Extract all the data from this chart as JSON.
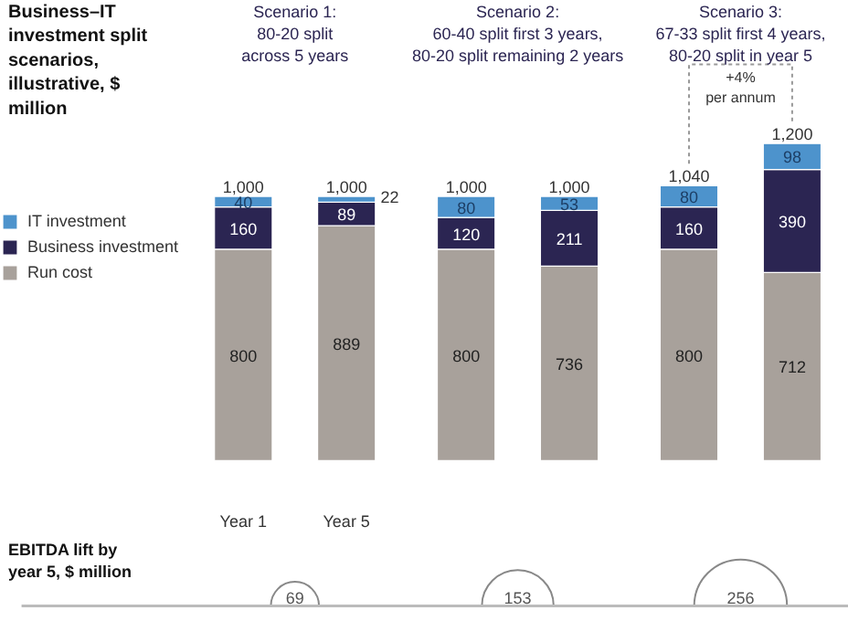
{
  "chart_data": [
    {
      "type": "bar",
      "title": "Business–IT investment split scenarios, illustrative, $ million",
      "stacked": true,
      "data_labels": true,
      "legend": "top left",
      "categories": [
        "Year 1",
        "Year 5",
        null,
        null,
        null,
        null
      ],
      "series": [
        {
          "name": "Run cost",
          "color": "#a8a19b",
          "values": [
            800,
            889,
            800,
            736,
            800,
            712
          ]
        },
        {
          "name": "Business investment",
          "color": "#2b2552",
          "values": [
            160,
            89,
            120,
            211,
            160,
            390
          ]
        },
        {
          "name": "IT investment",
          "color": "#4d93cc",
          "values": [
            40,
            22,
            80,
            53,
            80,
            98
          ]
        }
      ],
      "totals": [
        "1,000",
        "1,000",
        "1,000",
        "1,000",
        "1,040",
        "1,200"
      ],
      "annotations": [
        "Scenario 1:\n80-20 split\nacross 5 years",
        "Scenario 2:\n60-40 split first 3 years,\n80-20 split remaining 2 years",
        "Scenario 3:\n67-33 split first 4 years,\n80-20 split in year 5",
        "+4%\nper annum"
      ]
    },
    {
      "type": "other",
      "title": "EBITDA lift by year 5, $ million",
      "data_labels": true,
      "values": [
        69,
        153,
        256
      ]
    }
  ]
}
